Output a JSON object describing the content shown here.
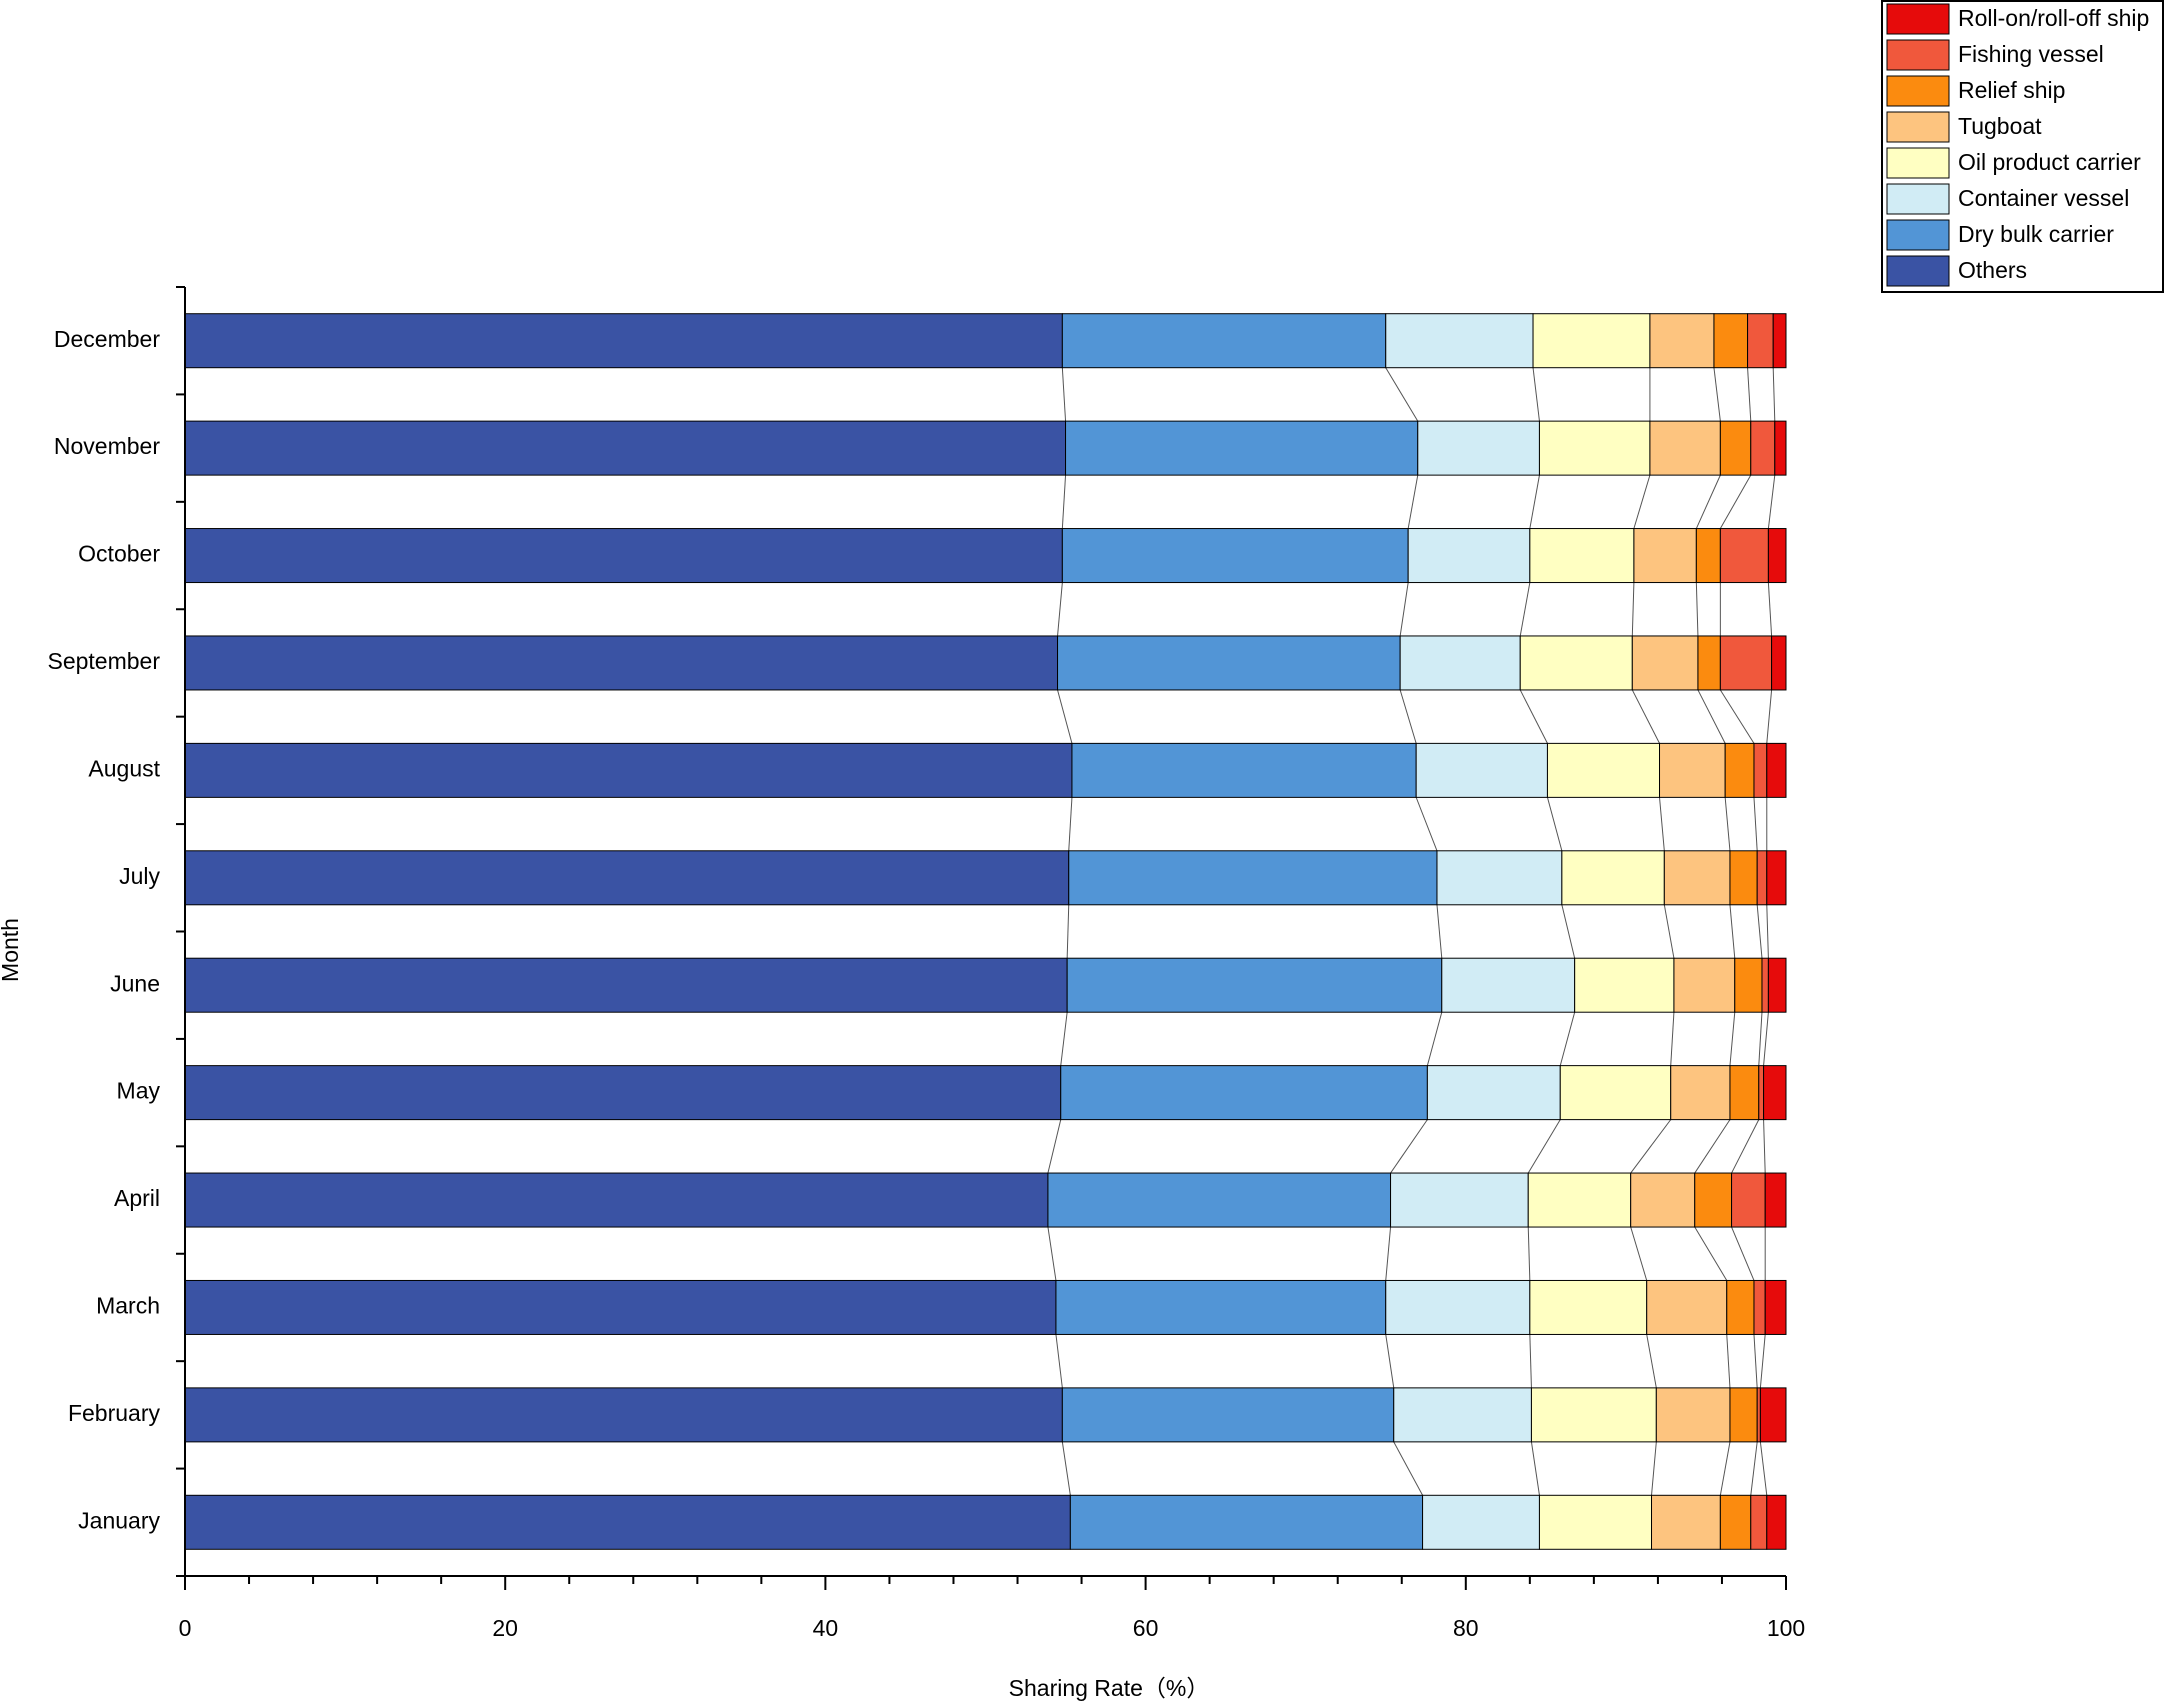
{
  "chart_data": {
    "type": "stacked_bar_horizontal",
    "x_label": "Sharing Rate（%）",
    "y_label": "Month",
    "categories": [
      "January",
      "February",
      "March",
      "April",
      "May",
      "June",
      "July",
      "August",
      "September",
      "October",
      "November",
      "December"
    ],
    "series": [
      {
        "name": "Others",
        "color": "#3a53a4",
        "values": [
          55.3,
          54.8,
          54.4,
          53.9,
          54.7,
          55.1,
          55.2,
          55.4,
          54.5,
          54.8,
          55.0,
          54.8
        ]
      },
      {
        "name": "Dry bulk carrier",
        "color": "#5295d6",
        "values": [
          22.0,
          20.7,
          20.6,
          21.4,
          22.9,
          23.4,
          23.0,
          21.5,
          21.4,
          21.6,
          22.0,
          20.2
        ]
      },
      {
        "name": "Container vessel",
        "color": "#d1ecf5",
        "values": [
          7.3,
          8.6,
          9.0,
          8.6,
          8.3,
          8.3,
          7.8,
          8.2,
          7.5,
          7.6,
          7.6,
          9.2
        ]
      },
      {
        "name": "Oil product carrier",
        "color": "#ffffc2",
        "values": [
          7.0,
          7.8,
          7.3,
          6.4,
          6.9,
          6.2,
          6.4,
          7.0,
          7.0,
          6.5,
          6.9,
          7.3
        ]
      },
      {
        "name": "Tugboat",
        "color": "#fdc47f",
        "values": [
          4.3,
          4.6,
          5.0,
          4.0,
          3.7,
          3.8,
          4.1,
          4.1,
          4.1,
          3.9,
          4.4,
          4.0
        ]
      },
      {
        "name": "Relief ship",
        "color": "#fb8b0f",
        "values": [
          1.9,
          1.7,
          1.7,
          2.3,
          1.8,
          1.7,
          1.7,
          1.8,
          1.4,
          1.5,
          1.9,
          2.1
        ]
      },
      {
        "name": "Fishing vessel",
        "color": "#f0583c",
        "values": [
          1.0,
          0.2,
          0.7,
          2.1,
          0.3,
          0.4,
          0.6,
          0.8,
          3.2,
          3.0,
          1.5,
          1.6
        ]
      },
      {
        "name": "Roll-on/roll-off ship",
        "color": "#e60b0b",
        "values": [
          1.2,
          1.6,
          1.3,
          1.3,
          1.4,
          1.1,
          1.2,
          1.2,
          0.9,
          1.1,
          0.7,
          0.8
        ]
      }
    ],
    "xlim": [
      0,
      100
    ],
    "xticks": [
      0,
      20,
      40,
      60,
      80,
      100
    ],
    "grid": false,
    "legend": "top-right"
  }
}
